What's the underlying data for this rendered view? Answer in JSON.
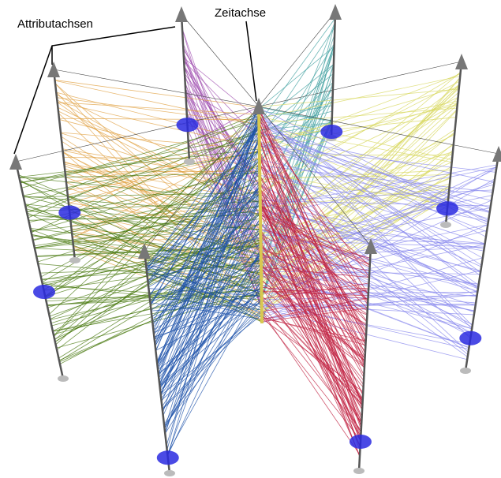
{
  "labels": {
    "attribute_axes": "Attributachsen",
    "time_axis": "Zeitachse"
  }
}
